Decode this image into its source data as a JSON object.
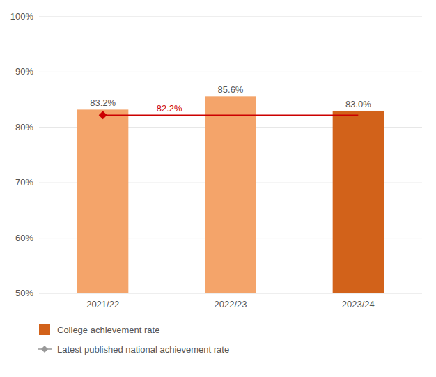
{
  "chart_data": {
    "type": "bar",
    "categories": [
      "2021/22",
      "2022/23",
      "2023/24"
    ],
    "series": [
      {
        "name": "College achievement rate",
        "type": "bar",
        "color": "#D2621A",
        "colors": [
          "#F4A46A",
          "#F4A46A",
          "#D2621A"
        ],
        "values": [
          83.2,
          85.6,
          83.0
        ],
        "value_labels": [
          "83.2%",
          "85.6%",
          "83.0%"
        ]
      }
    ],
    "reference_line": {
      "name": "Latest published national achievement rate",
      "value": 82.2,
      "value_label": "82.2%",
      "color": "#CC0000",
      "legend_color": "#999999",
      "marker": "diamond"
    },
    "ylim": [
      50,
      100
    ],
    "yticks": [
      {
        "value": 50,
        "label": "50%"
      },
      {
        "value": 60,
        "label": "60%"
      },
      {
        "value": 70,
        "label": "70%"
      },
      {
        "value": 80,
        "label": "80%"
      },
      {
        "value": 90,
        "label": "90%"
      },
      {
        "value": 100,
        "label": "100%"
      }
    ],
    "grid": true,
    "legend": "bottom"
  }
}
